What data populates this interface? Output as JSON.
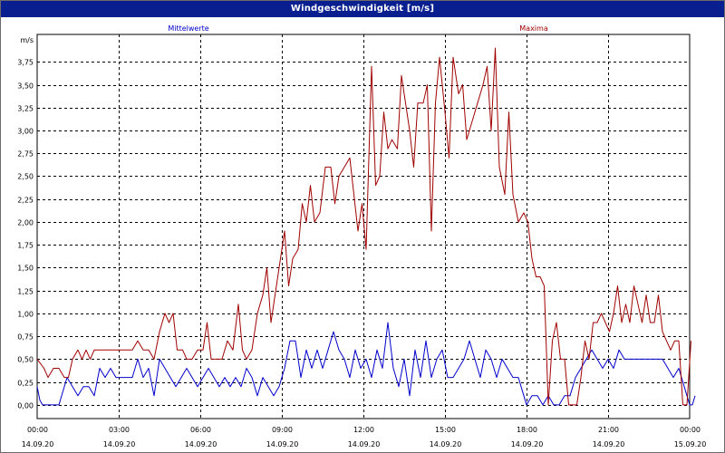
{
  "window": {
    "title": "Windgeschwindigkeit [m/s]"
  },
  "colors": {
    "series_mittel": "#0000cc",
    "series_maxima": "#a00000",
    "titlebar": "#0a1f8f",
    "grid": "#000000"
  },
  "chart_data": {
    "type": "line",
    "title": "Windgeschwindigkeit [m/s]",
    "ylabel": "m/s",
    "ylim": [
      -0.15,
      4.05
    ],
    "xlim": [
      0,
      24
    ],
    "grid": true,
    "grid_style": "dashed",
    "legend_placement": "top",
    "yticks": [
      {
        "value": 0.0,
        "label": "0,00"
      },
      {
        "value": 0.25,
        "label": "0,25"
      },
      {
        "value": 0.5,
        "label": "0,50"
      },
      {
        "value": 0.75,
        "label": "0,75"
      },
      {
        "value": 1.0,
        "label": "1,00"
      },
      {
        "value": 1.25,
        "label": "1,25"
      },
      {
        "value": 1.5,
        "label": "1,50"
      },
      {
        "value": 1.75,
        "label": "1,75"
      },
      {
        "value": 2.0,
        "label": "2,00"
      },
      {
        "value": 2.25,
        "label": "2,25"
      },
      {
        "value": 2.5,
        "label": "2,50"
      },
      {
        "value": 2.75,
        "label": "2,75"
      },
      {
        "value": 3.0,
        "label": "3,00"
      },
      {
        "value": 3.25,
        "label": "3,25"
      },
      {
        "value": 3.5,
        "label": "3,50"
      },
      {
        "value": 3.75,
        "label": "3,75"
      }
    ],
    "xticks": [
      {
        "value": 0,
        "time": "00:00",
        "date": "14.09.20"
      },
      {
        "value": 3,
        "time": "03:00",
        "date": "14.09.20"
      },
      {
        "value": 6,
        "time": "06:00",
        "date": "14.09.20"
      },
      {
        "value": 9,
        "time": "09:00",
        "date": "14.09.20"
      },
      {
        "value": 12,
        "time": "12:00",
        "date": "14.09.20"
      },
      {
        "value": 15,
        "time": "15:00",
        "date": "14.09.20"
      },
      {
        "value": 18,
        "time": "18:00",
        "date": "14.09.20"
      },
      {
        "value": 21,
        "time": "21:00",
        "date": "14.09.20"
      },
      {
        "value": 24,
        "time": "00:00",
        "date": "15.09.20"
      }
    ],
    "series": [
      {
        "name": "Mittelwerte",
        "color": "#0000cc",
        "points": [
          [
            0.0,
            0.2
          ],
          [
            0.1,
            0.05
          ],
          [
            0.2,
            0.0
          ],
          [
            0.5,
            0.0
          ],
          [
            0.8,
            0.0
          ],
          [
            1.1,
            0.3
          ],
          [
            1.3,
            0.2
          ],
          [
            1.5,
            0.1
          ],
          [
            1.7,
            0.2
          ],
          [
            1.9,
            0.2
          ],
          [
            2.1,
            0.1
          ],
          [
            2.3,
            0.4
          ],
          [
            2.5,
            0.3
          ],
          [
            2.7,
            0.4
          ],
          [
            2.9,
            0.3
          ],
          [
            3.1,
            0.3
          ],
          [
            3.3,
            0.3
          ],
          [
            3.5,
            0.3
          ],
          [
            3.7,
            0.5
          ],
          [
            3.9,
            0.3
          ],
          [
            4.1,
            0.4
          ],
          [
            4.3,
            0.1
          ],
          [
            4.5,
            0.5
          ],
          [
            4.7,
            0.4
          ],
          [
            4.9,
            0.3
          ],
          [
            5.1,
            0.2
          ],
          [
            5.3,
            0.3
          ],
          [
            5.5,
            0.4
          ],
          [
            5.7,
            0.3
          ],
          [
            5.9,
            0.2
          ],
          [
            6.1,
            0.3
          ],
          [
            6.3,
            0.4
          ],
          [
            6.5,
            0.3
          ],
          [
            6.7,
            0.2
          ],
          [
            6.9,
            0.3
          ],
          [
            7.1,
            0.2
          ],
          [
            7.3,
            0.3
          ],
          [
            7.5,
            0.2
          ],
          [
            7.7,
            0.4
          ],
          [
            7.9,
            0.3
          ],
          [
            8.1,
            0.1
          ],
          [
            8.3,
            0.3
          ],
          [
            8.5,
            0.2
          ],
          [
            8.7,
            0.1
          ],
          [
            8.9,
            0.2
          ],
          [
            9.1,
            0.4
          ],
          [
            9.3,
            0.7
          ],
          [
            9.5,
            0.7
          ],
          [
            9.7,
            0.3
          ],
          [
            9.9,
            0.6
          ],
          [
            10.1,
            0.4
          ],
          [
            10.3,
            0.6
          ],
          [
            10.5,
            0.4
          ],
          [
            10.7,
            0.6
          ],
          [
            10.9,
            0.8
          ],
          [
            11.1,
            0.6
          ],
          [
            11.3,
            0.5
          ],
          [
            11.5,
            0.3
          ],
          [
            11.7,
            0.6
          ],
          [
            11.9,
            0.4
          ],
          [
            12.1,
            0.5
          ],
          [
            12.3,
            0.3
          ],
          [
            12.5,
            0.6
          ],
          [
            12.7,
            0.4
          ],
          [
            12.9,
            0.9
          ],
          [
            13.1,
            0.4
          ],
          [
            13.3,
            0.2
          ],
          [
            13.5,
            0.5
          ],
          [
            13.7,
            0.1
          ],
          [
            13.9,
            0.6
          ],
          [
            14.1,
            0.3
          ],
          [
            14.3,
            0.7
          ],
          [
            14.5,
            0.3
          ],
          [
            14.7,
            0.5
          ],
          [
            14.9,
            0.6
          ],
          [
            15.1,
            0.3
          ],
          [
            15.3,
            0.3
          ],
          [
            15.5,
            0.4
          ],
          [
            15.7,
            0.5
          ],
          [
            15.9,
            0.7
          ],
          [
            16.1,
            0.5
          ],
          [
            16.3,
            0.3
          ],
          [
            16.5,
            0.6
          ],
          [
            16.7,
            0.5
          ],
          [
            16.9,
            0.3
          ],
          [
            17.1,
            0.5
          ],
          [
            17.3,
            0.4
          ],
          [
            17.5,
            0.3
          ],
          [
            17.7,
            0.3
          ],
          [
            17.9,
            0.1
          ],
          [
            18.0,
            0.0
          ],
          [
            18.2,
            0.1
          ],
          [
            18.4,
            0.1
          ],
          [
            18.6,
            0.0
          ],
          [
            18.8,
            0.1
          ],
          [
            19.0,
            0.0
          ],
          [
            19.2,
            0.0
          ],
          [
            19.4,
            0.1
          ],
          [
            19.6,
            0.1
          ],
          [
            19.8,
            0.3
          ],
          [
            20.0,
            0.4
          ],
          [
            20.2,
            0.5
          ],
          [
            20.4,
            0.6
          ],
          [
            20.6,
            0.5
          ],
          [
            20.8,
            0.4
          ],
          [
            21.0,
            0.5
          ],
          [
            21.2,
            0.4
          ],
          [
            21.4,
            0.6
          ],
          [
            21.6,
            0.5
          ],
          [
            21.8,
            0.5
          ],
          [
            22.0,
            0.5
          ],
          [
            22.2,
            0.5
          ],
          [
            22.4,
            0.5
          ],
          [
            22.6,
            0.5
          ],
          [
            22.8,
            0.5
          ],
          [
            23.0,
            0.5
          ],
          [
            23.2,
            0.4
          ],
          [
            23.4,
            0.3
          ],
          [
            23.6,
            0.4
          ],
          [
            23.8,
            0.2
          ],
          [
            24.0,
            0.0
          ],
          [
            24.1,
            0.0
          ],
          [
            24.2,
            0.1
          ]
        ]
      },
      {
        "name": "Maxima",
        "color": "#a00000",
        "points": [
          [
            0.0,
            0.5
          ],
          [
            0.25,
            0.4
          ],
          [
            0.4,
            0.3
          ],
          [
            0.6,
            0.4
          ],
          [
            0.8,
            0.4
          ],
          [
            1.0,
            0.3
          ],
          [
            1.15,
            0.3
          ],
          [
            1.3,
            0.5
          ],
          [
            1.5,
            0.6
          ],
          [
            1.65,
            0.5
          ],
          [
            1.8,
            0.6
          ],
          [
            1.95,
            0.5
          ],
          [
            2.1,
            0.6
          ],
          [
            2.3,
            0.6
          ],
          [
            2.5,
            0.6
          ],
          [
            2.7,
            0.6
          ],
          [
            2.9,
            0.6
          ],
          [
            3.1,
            0.6
          ],
          [
            3.3,
            0.6
          ],
          [
            3.5,
            0.6
          ],
          [
            3.7,
            0.7
          ],
          [
            3.9,
            0.6
          ],
          [
            4.1,
            0.6
          ],
          [
            4.3,
            0.5
          ],
          [
            4.5,
            0.8
          ],
          [
            4.7,
            1.0
          ],
          [
            4.85,
            0.9
          ],
          [
            5.0,
            1.0
          ],
          [
            5.15,
            0.6
          ],
          [
            5.35,
            0.6
          ],
          [
            5.5,
            0.5
          ],
          [
            5.7,
            0.5
          ],
          [
            5.9,
            0.6
          ],
          [
            6.1,
            0.6
          ],
          [
            6.25,
            0.9
          ],
          [
            6.4,
            0.5
          ],
          [
            6.6,
            0.5
          ],
          [
            6.8,
            0.5
          ],
          [
            7.0,
            0.7
          ],
          [
            7.2,
            0.6
          ],
          [
            7.4,
            1.1
          ],
          [
            7.55,
            0.6
          ],
          [
            7.7,
            0.5
          ],
          [
            7.9,
            0.6
          ],
          [
            8.1,
            1.0
          ],
          [
            8.3,
            1.2
          ],
          [
            8.45,
            1.5
          ],
          [
            8.6,
            0.9
          ],
          [
            8.75,
            1.2
          ],
          [
            8.9,
            1.5
          ],
          [
            9.1,
            1.9
          ],
          [
            9.25,
            1.3
          ],
          [
            9.4,
            1.6
          ],
          [
            9.6,
            1.7
          ],
          [
            9.75,
            2.2
          ],
          [
            9.9,
            2.0
          ],
          [
            10.05,
            2.4
          ],
          [
            10.2,
            2.0
          ],
          [
            10.4,
            2.1
          ],
          [
            10.6,
            2.6
          ],
          [
            10.8,
            2.6
          ],
          [
            10.95,
            2.2
          ],
          [
            11.1,
            2.5
          ],
          [
            11.3,
            2.6
          ],
          [
            11.5,
            2.7
          ],
          [
            11.65,
            2.3
          ],
          [
            11.8,
            1.9
          ],
          [
            11.95,
            2.2
          ],
          [
            12.1,
            1.7
          ],
          [
            12.3,
            3.7
          ],
          [
            12.45,
            2.4
          ],
          [
            12.6,
            2.5
          ],
          [
            12.75,
            3.2
          ],
          [
            12.9,
            2.8
          ],
          [
            13.05,
            2.9
          ],
          [
            13.25,
            2.8
          ],
          [
            13.4,
            3.6
          ],
          [
            13.55,
            3.3
          ],
          [
            13.7,
            3.0
          ],
          [
            13.85,
            2.6
          ],
          [
            14.0,
            3.3
          ],
          [
            14.2,
            3.3
          ],
          [
            14.35,
            3.5
          ],
          [
            14.5,
            1.9
          ],
          [
            14.65,
            3.3
          ],
          [
            14.8,
            3.8
          ],
          [
            15.0,
            3.2
          ],
          [
            15.15,
            2.7
          ],
          [
            15.3,
            3.8
          ],
          [
            15.5,
            3.4
          ],
          [
            15.65,
            3.5
          ],
          [
            15.8,
            2.9
          ],
          [
            16.0,
            3.1
          ],
          [
            16.2,
            3.3
          ],
          [
            16.4,
            3.5
          ],
          [
            16.55,
            3.7
          ],
          [
            16.7,
            3.0
          ],
          [
            16.85,
            3.9
          ],
          [
            17.0,
            2.6
          ],
          [
            17.2,
            2.3
          ],
          [
            17.35,
            3.2
          ],
          [
            17.5,
            2.3
          ],
          [
            17.7,
            2.0
          ],
          [
            17.9,
            2.1
          ],
          [
            18.05,
            2.0
          ],
          [
            18.2,
            1.6
          ],
          [
            18.35,
            1.4
          ],
          [
            18.5,
            1.4
          ],
          [
            18.65,
            1.3
          ],
          [
            18.8,
            0.0
          ],
          [
            18.95,
            0.7
          ],
          [
            19.1,
            0.9
          ],
          [
            19.25,
            0.5
          ],
          [
            19.4,
            0.5
          ],
          [
            19.55,
            0.0
          ],
          [
            19.7,
            0.0
          ],
          [
            19.85,
            0.0
          ],
          [
            20.0,
            0.3
          ],
          [
            20.15,
            0.7
          ],
          [
            20.3,
            0.5
          ],
          [
            20.45,
            0.9
          ],
          [
            20.6,
            0.9
          ],
          [
            20.75,
            1.0
          ],
          [
            20.9,
            0.9
          ],
          [
            21.05,
            0.8
          ],
          [
            21.2,
            1.0
          ],
          [
            21.35,
            1.3
          ],
          [
            21.5,
            0.9
          ],
          [
            21.65,
            1.1
          ],
          [
            21.8,
            0.9
          ],
          [
            21.95,
            1.3
          ],
          [
            22.1,
            1.1
          ],
          [
            22.25,
            0.9
          ],
          [
            22.4,
            1.2
          ],
          [
            22.55,
            0.9
          ],
          [
            22.7,
            0.9
          ],
          [
            22.85,
            1.2
          ],
          [
            23.0,
            0.8
          ],
          [
            23.15,
            0.7
          ],
          [
            23.3,
            0.6
          ],
          [
            23.45,
            0.7
          ],
          [
            23.6,
            0.7
          ],
          [
            23.75,
            0.0
          ],
          [
            23.9,
            0.0
          ],
          [
            24.05,
            0.7
          ]
        ]
      }
    ]
  }
}
